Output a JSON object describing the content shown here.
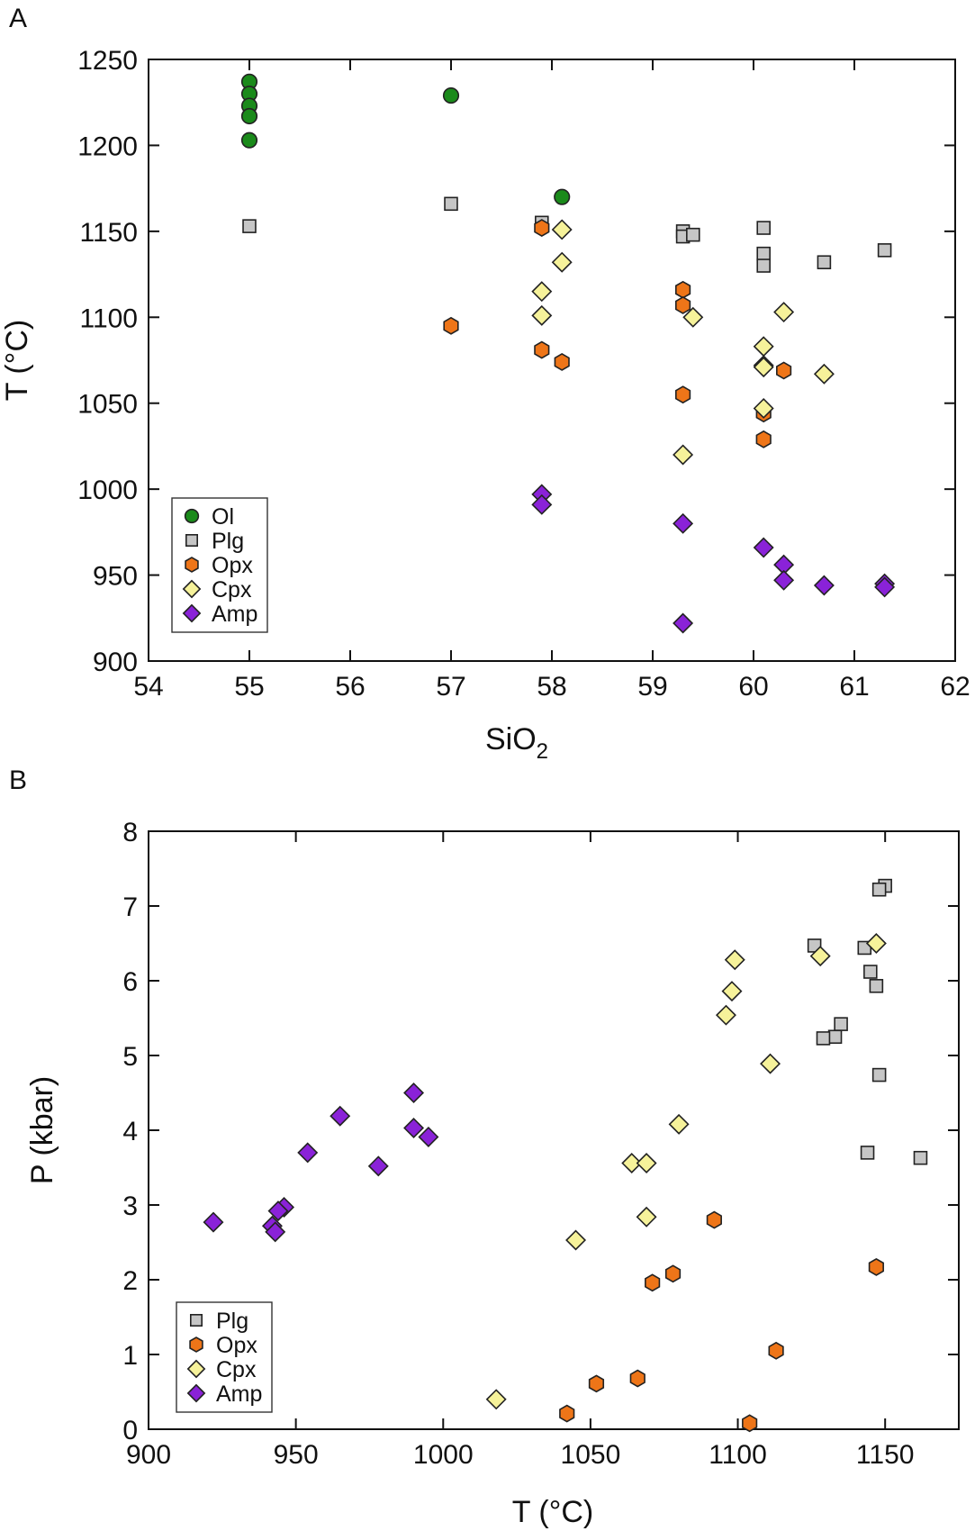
{
  "colors": {
    "Ol": "#1a8a1a",
    "Plg": "#c6c6c6",
    "Opx": "#ee7518",
    "Cpx": "#f6f29a",
    "Amp": "#8a22d8",
    "stroke": "#222222"
  },
  "symbols": {
    "Ol": "circle",
    "Plg": "square",
    "Opx": "hexagon",
    "Cpx": "diamond",
    "Amp": "diamond"
  },
  "chart_data": [
    {
      "panel": "A",
      "type": "scatter",
      "xlabel": "SiO",
      "xlabel_subscript": "2",
      "ylabel": "T (°C)",
      "xlim": [
        54,
        62
      ],
      "ylim": [
        900,
        1250
      ],
      "xticks": [
        54,
        55,
        56,
        57,
        58,
        59,
        60,
        61,
        62
      ],
      "yticks": [
        900,
        950,
        1000,
        1050,
        1100,
        1150,
        1200,
        1250
      ],
      "legend_position": "bottom-left",
      "series": [
        {
          "name": "Ol",
          "points": [
            [
              55.0,
              1237
            ],
            [
              55.0,
              1230
            ],
            [
              55.0,
              1223
            ],
            [
              55.0,
              1217
            ],
            [
              55.0,
              1203
            ],
            [
              57.0,
              1229
            ],
            [
              58.1,
              1170
            ]
          ]
        },
        {
          "name": "Plg",
          "points": [
            [
              55.0,
              1153
            ],
            [
              57.0,
              1166
            ],
            [
              57.9,
              1155
            ],
            [
              59.3,
              1150
            ],
            [
              59.3,
              1147
            ],
            [
              59.4,
              1148
            ],
            [
              60.1,
              1152
            ],
            [
              60.1,
              1137
            ],
            [
              60.1,
              1130
            ],
            [
              60.7,
              1132
            ],
            [
              61.3,
              1139
            ]
          ]
        },
        {
          "name": "Opx",
          "points": [
            [
              57.0,
              1095
            ],
            [
              57.9,
              1152
            ],
            [
              57.9,
              1081
            ],
            [
              58.1,
              1074
            ],
            [
              59.3,
              1116
            ],
            [
              59.3,
              1107
            ],
            [
              59.3,
              1055
            ],
            [
              60.1,
              1044
            ],
            [
              60.1,
              1029
            ],
            [
              60.3,
              1069
            ]
          ]
        },
        {
          "name": "Cpx",
          "points": [
            [
              58.1,
              1151
            ],
            [
              58.1,
              1132
            ],
            [
              57.9,
              1115
            ],
            [
              57.9,
              1101
            ],
            [
              59.4,
              1100
            ],
            [
              59.3,
              1020
            ],
            [
              60.1,
              1083
            ],
            [
              60.1,
              1072
            ],
            [
              60.1,
              1071
            ],
            [
              60.3,
              1103
            ],
            [
              60.1,
              1047
            ],
            [
              60.7,
              1067
            ]
          ]
        },
        {
          "name": "Amp",
          "points": [
            [
              57.9,
              997
            ],
            [
              57.9,
              991
            ],
            [
              59.3,
              980
            ],
            [
              59.3,
              922
            ],
            [
              60.1,
              966
            ],
            [
              60.3,
              956
            ],
            [
              60.3,
              947
            ],
            [
              60.7,
              944
            ],
            [
              61.3,
              945
            ],
            [
              61.3,
              943
            ]
          ]
        }
      ]
    },
    {
      "panel": "B",
      "type": "scatter",
      "xlabel": "T (°C)",
      "ylabel": "P (kbar)",
      "xlim": [
        900,
        1175
      ],
      "ylim": [
        0,
        8
      ],
      "xticks": [
        900,
        950,
        1000,
        1050,
        1100,
        1150
      ],
      "yticks": [
        0,
        1,
        2,
        3,
        4,
        5,
        6,
        7,
        8
      ],
      "legend_position": "bottom-left",
      "series": [
        {
          "name": "Plg",
          "points": [
            [
              1150,
              7.27
            ],
            [
              1148,
              7.22
            ],
            [
              1126,
              6.47
            ],
            [
              1143,
              6.44
            ],
            [
              1145,
              6.12
            ],
            [
              1147,
              5.93
            ],
            [
              1135,
              5.42
            ],
            [
              1133,
              5.25
            ],
            [
              1129,
              5.23
            ],
            [
              1148,
              4.74
            ],
            [
              1144,
              3.7
            ],
            [
              1162,
              3.63
            ]
          ]
        },
        {
          "name": "Opx",
          "points": [
            [
              1092,
              2.8
            ],
            [
              1147,
              2.17
            ],
            [
              1078,
              2.08
            ],
            [
              1071,
              1.96
            ],
            [
              1113,
              1.05
            ],
            [
              1066,
              0.68
            ],
            [
              1052,
              0.61
            ],
            [
              1042,
              0.21
            ],
            [
              1104,
              0.08
            ]
          ]
        },
        {
          "name": "Cpx",
          "points": [
            [
              1147,
              6.5
            ],
            [
              1128,
              6.33
            ],
            [
              1099,
              6.28
            ],
            [
              1098,
              5.86
            ],
            [
              1096,
              5.54
            ],
            [
              1111,
              4.89
            ],
            [
              1080,
              4.08
            ],
            [
              1064,
              3.56
            ],
            [
              1069,
              3.56
            ],
            [
              1069,
              2.84
            ],
            [
              1045,
              2.53
            ],
            [
              1018,
              0.4
            ]
          ]
        },
        {
          "name": "Amp",
          "points": [
            [
              990,
              4.5
            ],
            [
              965,
              4.19
            ],
            [
              990,
              4.03
            ],
            [
              995,
              3.91
            ],
            [
              954,
              3.7
            ],
            [
              978,
              3.52
            ],
            [
              922,
              2.77
            ],
            [
              946,
              2.97
            ],
            [
              944,
              2.92
            ],
            [
              942,
              2.72
            ],
            [
              943,
              2.64
            ]
          ]
        }
      ]
    }
  ]
}
